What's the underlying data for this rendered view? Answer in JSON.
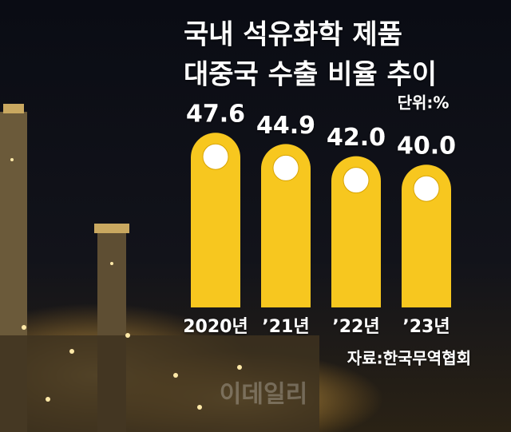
{
  "chart_data": {
    "type": "bar",
    "title": [
      "국내 석유화학 제품",
      "대중국 수출 비율 추이"
    ],
    "unit": "단위:%",
    "categories": [
      "2020년",
      "’21년",
      "’22년",
      "’23년"
    ],
    "values": [
      47.6,
      44.9,
      42.0,
      40.0
    ],
    "value_labels": [
      "47.6",
      "44.9",
      "42.0",
      "40.0"
    ],
    "color": "#f7c71f",
    "ylim": [
      6,
      50
    ],
    "source": "자료:한국무역협회",
    "watermark": "이데일리"
  }
}
